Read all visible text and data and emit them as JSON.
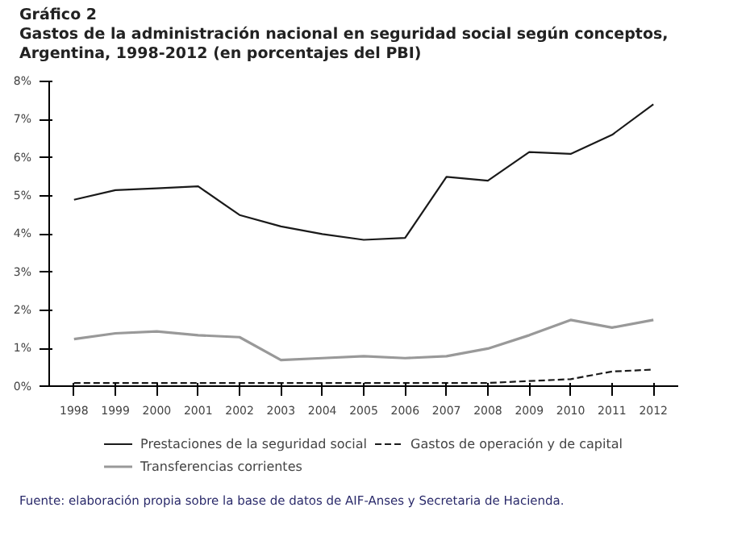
{
  "chart_data": {
    "type": "line",
    "title": "Gráfico 2",
    "subtitle": "Gastos de la administración nacional en seguridad social según conceptos, Argentina, 1998-2012 (en porcentajes del PBI)",
    "categories": [
      "1998",
      "1999",
      "2000",
      "2001",
      "2002",
      "2003",
      "2004",
      "2005",
      "2006",
      "2007",
      "2008",
      "2009",
      "2010",
      "2011",
      "2012"
    ],
    "series": [
      {
        "name": "Prestaciones de la seguridad social",
        "color": "#1a1a1a",
        "line_style": "solid",
        "values": [
          4.9,
          5.15,
          5.2,
          5.25,
          4.5,
          4.2,
          4.0,
          3.85,
          3.9,
          5.5,
          5.4,
          6.15,
          6.1,
          6.6,
          7.4
        ]
      },
      {
        "name": "Transferencias corrientes",
        "color": "#999999",
        "line_style": "solid",
        "values": [
          1.25,
          1.4,
          1.45,
          1.35,
          1.3,
          0.7,
          0.75,
          0.8,
          0.75,
          0.8,
          1.0,
          1.35,
          1.75,
          1.55,
          1.75
        ]
      },
      {
        "name": "Gastos de operación y de capital",
        "color": "#1a1a1a",
        "line_style": "dashed",
        "values": [
          0.1,
          0.1,
          0.1,
          0.1,
          0.1,
          0.1,
          0.1,
          0.1,
          0.1,
          0.1,
          0.1,
          0.15,
          0.2,
          0.4,
          0.45
        ]
      }
    ],
    "ylim": [
      0,
      8
    ],
    "yticks": [
      {
        "value": 0,
        "label": "0%"
      },
      {
        "value": 1,
        "label": "1%"
      },
      {
        "value": 2,
        "label": "2%"
      },
      {
        "value": 3,
        "label": "3%"
      },
      {
        "value": 4,
        "label": "4%"
      },
      {
        "value": 5,
        "label": "5%"
      },
      {
        "value": 6,
        "label": "6%"
      },
      {
        "value": 7,
        "label": "7%"
      },
      {
        "value": 8,
        "label": "8%"
      }
    ],
    "grid": false,
    "legend": "bottom",
    "annotations": [
      "Fuente: elaboración propia sobre la base de datos de AIF-Anses y Secretaria de Hacienda."
    ]
  }
}
